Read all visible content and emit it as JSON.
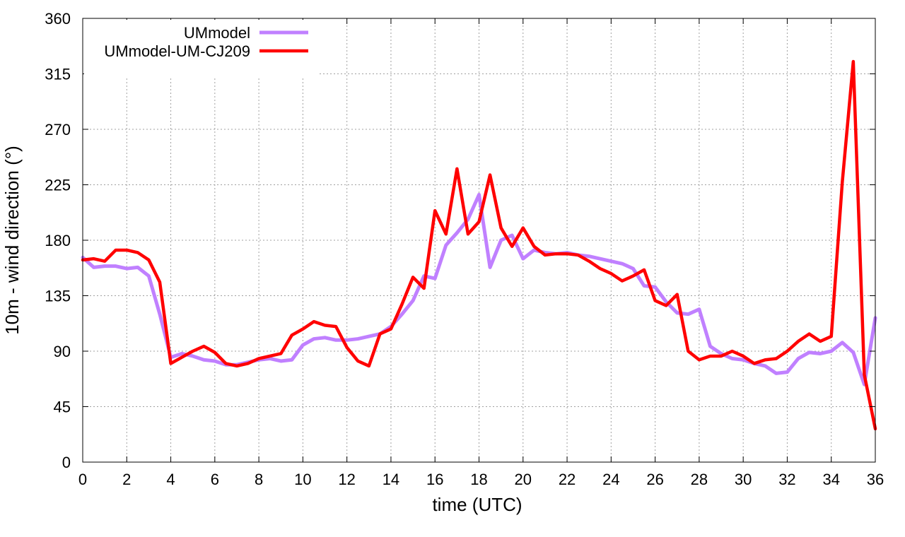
{
  "chart_data": {
    "type": "line",
    "title": "",
    "xlabel": "time (UTC)",
    "ylabel": "10m - wind direction (°)",
    "xlim": [
      0,
      36
    ],
    "ylim": [
      0,
      360
    ],
    "xticks": [
      0,
      2,
      4,
      6,
      8,
      10,
      12,
      14,
      16,
      18,
      20,
      22,
      24,
      26,
      28,
      30,
      32,
      34,
      36
    ],
    "yticks": [
      0,
      45,
      90,
      135,
      180,
      225,
      270,
      315,
      360
    ],
    "grid": true,
    "legend_position": "top-left",
    "x": [
      0,
      0.5,
      1,
      1.5,
      2,
      2.5,
      3,
      3.5,
      4,
      4.5,
      5,
      5.5,
      6,
      6.5,
      7,
      7.5,
      8,
      8.5,
      9,
      9.5,
      10,
      10.5,
      11,
      11.5,
      12,
      12.5,
      13,
      13.5,
      14,
      14.5,
      15,
      15.5,
      16,
      16.5,
      17,
      17.5,
      18,
      18.5,
      19,
      19.5,
      20,
      20.5,
      21,
      21.5,
      22,
      22.5,
      23,
      23.5,
      24,
      24.5,
      25,
      25.5,
      26,
      26.5,
      27,
      27.5,
      28,
      28.5,
      29,
      29.5,
      30,
      30.5,
      31,
      31.5,
      32,
      32.5,
      33,
      33.5,
      34,
      34.5,
      35,
      35.5,
      36
    ],
    "series": [
      {
        "name": "UMmodel",
        "color": "#c080ff",
        "values": [
          166,
          158,
          159,
          159,
          157,
          158,
          151,
          120,
          85,
          88,
          86,
          83,
          82,
          79,
          79,
          81,
          83,
          84,
          82,
          83,
          95,
          100,
          101,
          99,
          99,
          100,
          102,
          104,
          110,
          120,
          131,
          151,
          149,
          176,
          186,
          197,
          217,
          158,
          180,
          184,
          165,
          172,
          170,
          169,
          170,
          168,
          167,
          165,
          163,
          161,
          157,
          143,
          142,
          130,
          121,
          120,
          124,
          94,
          88,
          84,
          83,
          80,
          78,
          72,
          73,
          84,
          89,
          88,
          90,
          97,
          89,
          63,
          117
        ]
      },
      {
        "name": "UMmodel-UM-CJ209",
        "color": "#ff0000",
        "values": [
          164,
          165,
          163,
          172,
          172,
          170,
          164,
          146,
          80,
          85,
          90,
          94,
          89,
          80,
          78,
          80,
          84,
          86,
          88,
          103,
          108,
          114,
          111,
          110,
          93,
          82,
          78,
          104,
          108,
          128,
          150,
          141,
          204,
          185,
          238,
          185,
          195,
          233,
          190,
          175,
          190,
          175,
          168,
          169,
          169,
          168,
          163,
          157,
          153,
          147,
          151,
          156,
          131,
          127,
          136,
          90,
          83,
          86,
          86,
          90,
          86,
          80,
          83,
          84,
          90,
          98,
          104,
          98,
          102,
          227,
          325,
          71,
          27
        ]
      }
    ]
  }
}
